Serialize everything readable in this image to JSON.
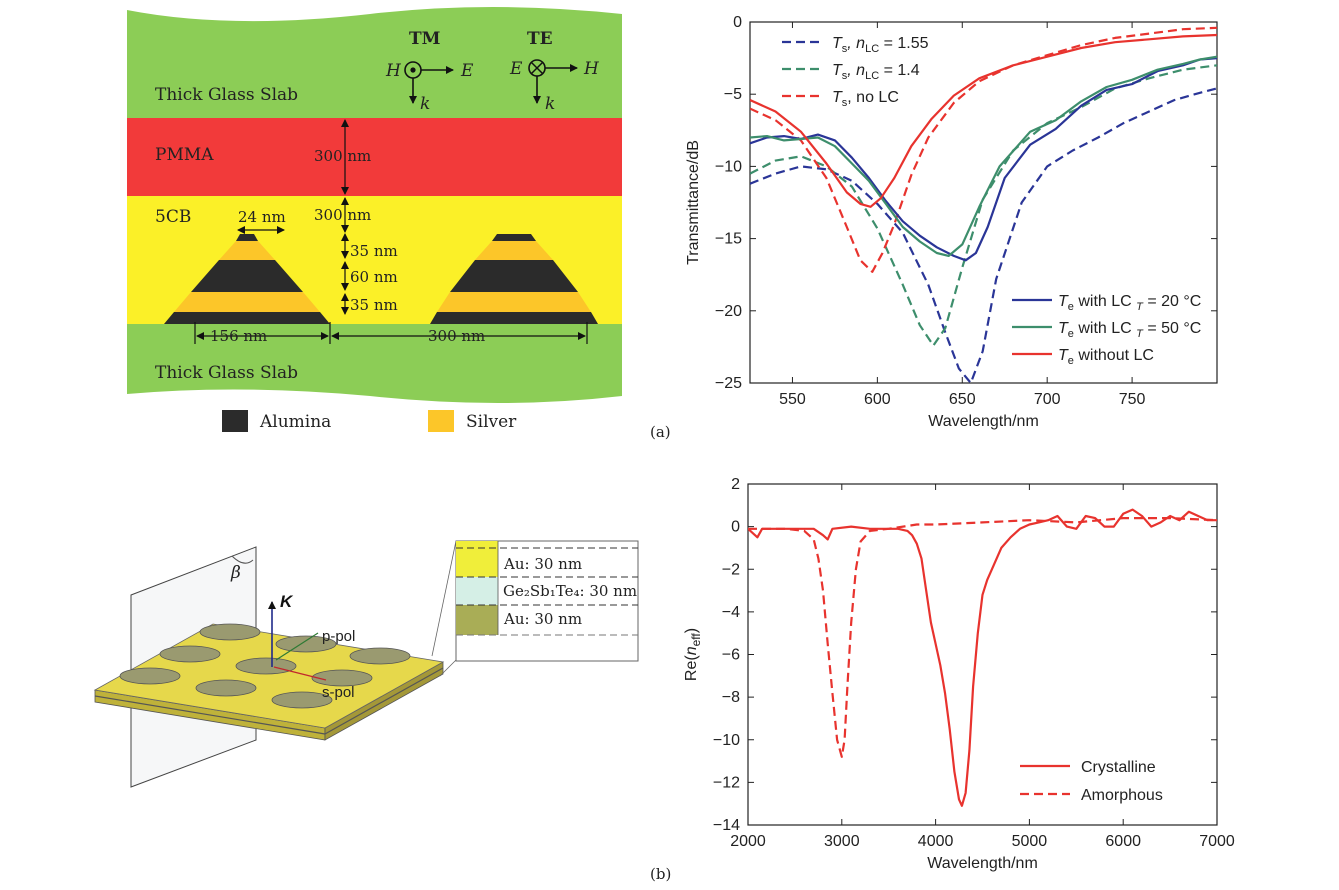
{
  "panel_labels": {
    "a": "(a)",
    "b": "(b)"
  },
  "colors": {
    "glass": "#8ccd56",
    "pmma": "#f23a3a",
    "lc": "#fbf028",
    "alumina": "#2b2b2b",
    "silver": "#fcc629",
    "navy": "#2a3597",
    "teal": "#3d8e6c",
    "red": "#e8332e",
    "gold_plate": "#e6d84b"
  },
  "diagram_a": {
    "layer_glass_top": "Thick Glass Slab",
    "layer_pmma": "PMMA",
    "layer_lc": "5CB",
    "layer_glass_bottom": "Thick Glass Slab",
    "mode_tm": "TM",
    "mode_te": "TE",
    "field_h": "H",
    "field_e": "E",
    "field_k": "k",
    "dims": {
      "pmma_thickness": "300 nm",
      "lc_thickness": "300 nm",
      "top_width": "24 nm",
      "layer1": "35 nm",
      "layer2": "60 nm",
      "layer3": "35 nm",
      "base_width": "156 nm",
      "period": "300 nm"
    },
    "legend": {
      "alumina": "Alumina",
      "silver": "Silver"
    }
  },
  "diagram_b": {
    "angle_label": "β",
    "k_label": "K",
    "p_pol": "p-pol",
    "s_pol": "s-pol",
    "inset": {
      "layer_top": "Au: 30 nm",
      "layer_mid": "Ge₂Sb₁Te₄: 30 nm",
      "layer_bottom": "Au: 30 nm"
    }
  },
  "chart_data": [
    {
      "type": "line",
      "xlabel": "Wavelength/nm",
      "ylabel": "Transmittance/dB",
      "xlim": [
        525,
        800
      ],
      "ylim": [
        -25,
        0
      ],
      "xticks": [
        550,
        600,
        650,
        700,
        750
      ],
      "yticks": [
        0,
        -5,
        -10,
        -15,
        -20,
        -25
      ],
      "grid": false,
      "legend_top": "top-left",
      "legend_bottom": "bottom-right",
      "series": [
        {
          "name": "Ts, nLC = 1.55",
          "label_parts": [
            "T",
            "s",
            ", n",
            "LC",
            " = 1.55"
          ],
          "style": "dashed",
          "color": "#2a3597",
          "x": [
            525,
            540,
            555,
            570,
            585,
            600,
            615,
            630,
            640,
            648,
            655,
            662,
            670,
            685,
            700,
            715,
            730,
            745,
            760,
            775,
            790,
            800
          ],
          "y": [
            -11.2,
            -10.5,
            -10.0,
            -10.2,
            -11.0,
            -12.6,
            -14.6,
            -18.2,
            -21.5,
            -24.0,
            -25.0,
            -22.8,
            -17.8,
            -12.5,
            -10.0,
            -8.9,
            -8.0,
            -7.0,
            -6.2,
            -5.4,
            -4.9,
            -4.6
          ]
        },
        {
          "name": "Ts, nLC = 1.4",
          "label_parts": [
            "T",
            "s",
            ", n",
            "LC",
            " = 1.4"
          ],
          "style": "dashed",
          "color": "#3d8e6c",
          "x": [
            525,
            540,
            555,
            570,
            585,
            600,
            615,
            625,
            633,
            640,
            650,
            662,
            680,
            700,
            720,
            740,
            760,
            780,
            800
          ],
          "y": [
            -10.5,
            -9.6,
            -9.3,
            -10.0,
            -11.4,
            -14.3,
            -18.2,
            -21.0,
            -22.4,
            -21.2,
            -17.0,
            -12.3,
            -8.9,
            -7.0,
            -5.9,
            -4.6,
            -3.9,
            -3.3,
            -3.0
          ]
        },
        {
          "name": "Ts, no LC",
          "label_parts": [
            "T",
            "s",
            ", no LC"
          ],
          "style": "dashed",
          "color": "#e8332e",
          "x": [
            525,
            540,
            555,
            570,
            582,
            590,
            597,
            603,
            610,
            620,
            630,
            645,
            660,
            680,
            700,
            720,
            740,
            760,
            780,
            800
          ],
          "y": [
            -6.0,
            -6.8,
            -8.2,
            -10.8,
            -14.2,
            -16.5,
            -17.3,
            -16.0,
            -14.0,
            -10.6,
            -8.0,
            -5.6,
            -4.1,
            -3.0,
            -2.3,
            -1.6,
            -1.1,
            -0.8,
            -0.5,
            -0.4
          ]
        },
        {
          "name": "Te with LC T = 20 °C",
          "label_parts": [
            "T",
            "e",
            " with LC ",
            "T",
            " = 20 °C"
          ],
          "style": "solid",
          "color": "#2a3597",
          "x": [
            525,
            535,
            545,
            555,
            565,
            575,
            585,
            595,
            605,
            615,
            625,
            635,
            645,
            652,
            658,
            665,
            675,
            690,
            705,
            720,
            735,
            750,
            765,
            780,
            790,
            800
          ],
          "y": [
            -8.4,
            -8.0,
            -7.9,
            -8.1,
            -7.8,
            -8.2,
            -9.4,
            -10.8,
            -12.4,
            -13.8,
            -14.8,
            -15.6,
            -16.2,
            -16.5,
            -16.0,
            -14.2,
            -10.8,
            -8.5,
            -7.4,
            -5.8,
            -4.7,
            -4.3,
            -3.4,
            -3.0,
            -2.6,
            -2.5
          ]
        },
        {
          "name": "Te with LC T = 50 °C",
          "label_parts": [
            "T",
            "e",
            " with LC ",
            "T",
            " = 50 °C"
          ],
          "style": "solid",
          "color": "#3d8e6c",
          "x": [
            525,
            535,
            545,
            555,
            565,
            575,
            585,
            595,
            605,
            615,
            625,
            635,
            642,
            650,
            660,
            672,
            690,
            705,
            720,
            735,
            750,
            765,
            780,
            790,
            800
          ],
          "y": [
            -8.0,
            -7.9,
            -8.2,
            -8.1,
            -8.0,
            -8.6,
            -9.8,
            -11.0,
            -12.6,
            -14.2,
            -15.2,
            -16.0,
            -16.2,
            -15.4,
            -12.8,
            -10.0,
            -7.6,
            -6.8,
            -5.5,
            -4.5,
            -4.0,
            -3.3,
            -2.9,
            -2.6,
            -2.4
          ]
        },
        {
          "name": "Te without LC",
          "label_parts": [
            "T",
            "e",
            " without LC"
          ],
          "style": "solid",
          "color": "#e8332e",
          "x": [
            525,
            540,
            555,
            570,
            582,
            590,
            596,
            602,
            610,
            620,
            632,
            645,
            660,
            680,
            700,
            720,
            740,
            760,
            780,
            800
          ],
          "y": [
            -5.4,
            -6.2,
            -7.6,
            -9.8,
            -11.8,
            -12.6,
            -12.8,
            -12.2,
            -10.8,
            -8.6,
            -6.7,
            -5.1,
            -3.9,
            -3.0,
            -2.4,
            -1.8,
            -1.4,
            -1.2,
            -1.0,
            -0.9
          ]
        }
      ]
    },
    {
      "type": "line",
      "xlabel": "Wavelength/nm",
      "ylabel_parts": [
        "Re(",
        "n",
        "eff",
        ")"
      ],
      "xlim": [
        2000,
        7000
      ],
      "ylim": [
        -14,
        2
      ],
      "xticks": [
        2000,
        3000,
        4000,
        5000,
        6000,
        7000
      ],
      "yticks": [
        2,
        0,
        -2,
        -4,
        -6,
        -8,
        -10,
        -12,
        -14
      ],
      "grid": false,
      "legend": "bottom-right",
      "series": [
        {
          "name": "Crystalline",
          "style": "solid",
          "color": "#e8332e",
          "x": [
            2000,
            2100,
            2150,
            2300,
            2500,
            2700,
            2800,
            2850,
            2900,
            3100,
            3300,
            3500,
            3600,
            3700,
            3750,
            3800,
            3850,
            3900,
            3950,
            4000,
            4050,
            4100,
            4150,
            4200,
            4250,
            4280,
            4320,
            4360,
            4400,
            4450,
            4500,
            4550,
            4600,
            4700,
            4800,
            4900,
            5000,
            5100,
            5200,
            5300,
            5400,
            5500,
            5600,
            5700,
            5800,
            5900,
            6000,
            6100,
            6200,
            6300,
            6400,
            6500,
            6600,
            6700,
            6800,
            6900,
            7000
          ],
          "y": [
            -0.1,
            -0.5,
            -0.1,
            -0.1,
            -0.1,
            -0.1,
            -0.4,
            -0.6,
            -0.1,
            0.0,
            -0.1,
            -0.1,
            -0.1,
            -0.2,
            -0.4,
            -0.8,
            -1.5,
            -3.0,
            -4.5,
            -5.5,
            -6.5,
            -7.8,
            -9.5,
            -11.5,
            -12.8,
            -13.1,
            -12.5,
            -10.5,
            -7.5,
            -5.0,
            -3.2,
            -2.5,
            -2.0,
            -1.0,
            -0.5,
            -0.1,
            0.1,
            0.2,
            0.3,
            0.5,
            0.0,
            -0.1,
            0.5,
            0.4,
            0.0,
            0.0,
            0.6,
            0.8,
            0.5,
            0.0,
            0.2,
            0.5,
            0.3,
            0.7,
            0.5,
            0.3,
            0.3
          ]
        },
        {
          "name": "Amorphous",
          "style": "dashed",
          "color": "#e8332e",
          "x": [
            2000,
            2200,
            2400,
            2600,
            2700,
            2750,
            2800,
            2850,
            2900,
            2950,
            3000,
            3030,
            3060,
            3100,
            3150,
            3200,
            3300,
            3500,
            3800,
            4000,
            4500,
            5000,
            5500,
            6000,
            6500,
            7000
          ],
          "y": [
            -0.1,
            -0.1,
            -0.1,
            -0.2,
            -0.6,
            -1.5,
            -3.0,
            -5.5,
            -7.8,
            -10.0,
            -10.8,
            -10.0,
            -7.5,
            -4.5,
            -2.0,
            -0.7,
            -0.2,
            -0.1,
            0.1,
            0.1,
            0.2,
            0.3,
            0.2,
            0.4,
            0.4,
            0.3
          ]
        }
      ]
    }
  ]
}
